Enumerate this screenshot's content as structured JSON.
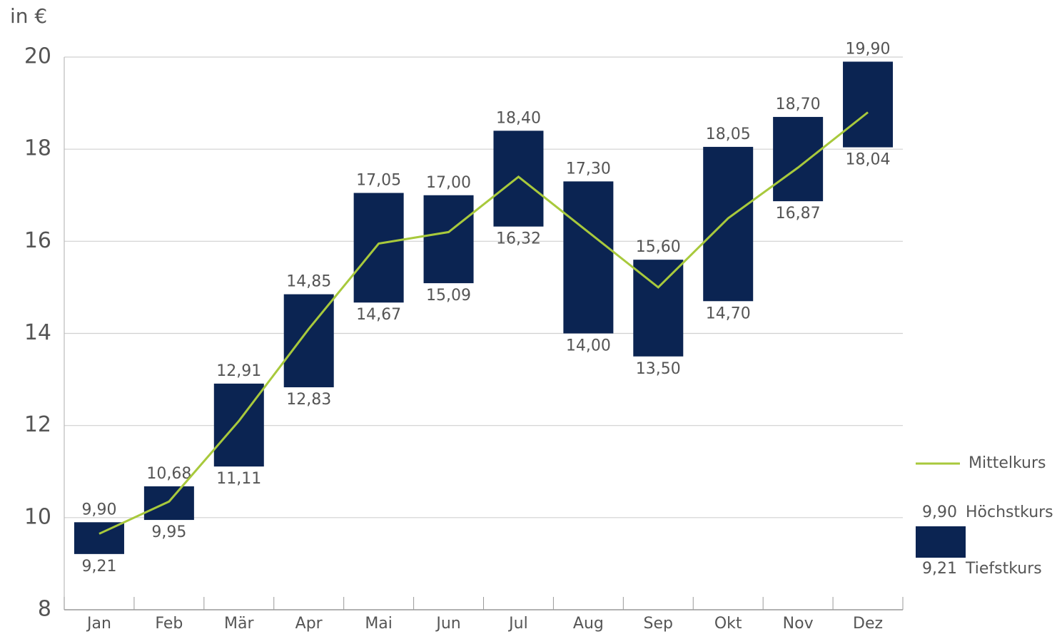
{
  "chart_data": {
    "type": "floating-bar",
    "y_label": "in €",
    "categories": [
      "Jan",
      "Feb",
      "Mär",
      "Apr",
      "Mai",
      "Jun",
      "Jul",
      "Aug",
      "Sep",
      "Okt",
      "Nov",
      "Dez"
    ],
    "series": [
      {
        "name": "Höchstkurs",
        "color": "#0b2452",
        "values": [
          9.9,
          10.68,
          12.91,
          14.85,
          17.05,
          17.0,
          18.4,
          17.3,
          15.6,
          18.05,
          18.7,
          19.9
        ],
        "value_labels": [
          "9,90",
          "10,68",
          "12,91",
          "14,85",
          "17,05",
          "17,00",
          "18,40",
          "17,30",
          "15,60",
          "18,05",
          "18,70",
          "19,90"
        ]
      },
      {
        "name": "Tiefstkurs",
        "color": "#0b2452",
        "values": [
          9.21,
          9.95,
          11.11,
          12.83,
          14.67,
          15.09,
          16.32,
          14.0,
          13.5,
          14.7,
          16.87,
          18.04
        ],
        "value_labels": [
          "9,21",
          "9,95",
          "11,11",
          "12,83",
          "14,67",
          "15,09",
          "16,32",
          "14,00",
          "13,50",
          "14,70",
          "16,87",
          "18,04"
        ]
      },
      {
        "name": "Mittelkurs",
        "color": "#a8c93c",
        "values": [
          9.65,
          10.35,
          12.1,
          14.1,
          15.95,
          16.2,
          17.4,
          16.2,
          15.0,
          16.5,
          17.6,
          18.8
        ]
      }
    ],
    "ylim": [
      8,
      20
    ],
    "yticks": [
      8,
      10,
      12,
      14,
      16,
      18,
      20
    ],
    "grid": true,
    "legend": "right"
  }
}
